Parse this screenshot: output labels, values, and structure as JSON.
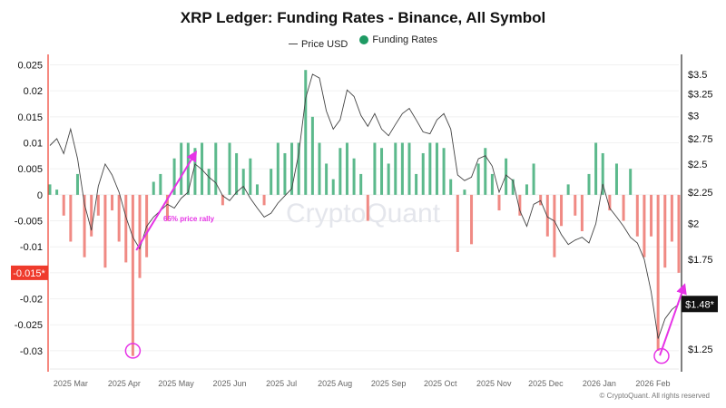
{
  "chart_data": {
    "type": "bar+line",
    "title": "XRP Ledger: Funding Rates - Binance, All Symbol",
    "legend": {
      "placement": "top-center",
      "entries": [
        "Price USD",
        "Funding Rates"
      ]
    },
    "x": [
      "2025-02-17",
      "2025-02-21",
      "2025-02-25",
      "2025-03-01",
      "2025-03-05",
      "2025-03-09",
      "2025-03-13",
      "2025-03-17",
      "2025-03-21",
      "2025-03-25",
      "2025-03-29",
      "2025-04-02",
      "2025-04-06",
      "2025-04-10",
      "2025-04-14",
      "2025-04-18",
      "2025-04-22",
      "2025-04-26",
      "2025-04-30",
      "2025-05-04",
      "2025-05-08",
      "2025-05-12",
      "2025-05-16",
      "2025-05-20",
      "2025-05-24",
      "2025-05-28",
      "2025-06-01",
      "2025-06-05",
      "2025-06-09",
      "2025-06-13",
      "2025-06-17",
      "2025-06-21",
      "2025-06-25",
      "2025-06-29",
      "2025-07-03",
      "2025-07-07",
      "2025-07-11",
      "2025-07-15",
      "2025-07-19",
      "2025-07-23",
      "2025-07-27",
      "2025-07-31",
      "2025-08-04",
      "2025-08-08",
      "2025-08-12",
      "2025-08-16",
      "2025-08-20",
      "2025-08-24",
      "2025-08-28",
      "2025-09-01",
      "2025-09-05",
      "2025-09-09",
      "2025-09-13",
      "2025-09-17",
      "2025-09-21",
      "2025-09-25",
      "2025-09-29",
      "2025-10-03",
      "2025-10-07",
      "2025-10-11",
      "2025-10-15",
      "2025-10-19",
      "2025-10-23",
      "2025-10-27",
      "2025-10-31",
      "2025-11-04",
      "2025-11-08",
      "2025-11-12",
      "2025-11-16",
      "2025-11-20",
      "2025-11-24",
      "2025-11-28",
      "2025-12-02",
      "2025-12-06",
      "2025-12-10",
      "2025-12-14",
      "2025-12-18",
      "2025-12-22",
      "2025-12-26",
      "2025-12-30",
      "2026-01-03",
      "2026-01-07",
      "2026-01-11",
      "2026-01-15",
      "2026-01-19",
      "2026-01-23",
      "2026-01-27",
      "2026-01-31",
      "2026-02-04",
      "2026-02-08",
      "2026-02-12",
      "2026-02-16"
    ],
    "x_ticks": [
      "2025 Mar",
      "2025 Apr",
      "2025 May",
      "2025 Jun",
      "2025 Jul",
      "2025 Aug",
      "2025 Sep",
      "2025 Oct",
      "2025 Nov",
      "2025 Dec",
      "2026 Jan",
      "2026 Feb"
    ],
    "x_tick_dates": [
      "2025-03-01",
      "2025-04-01",
      "2025-05-01",
      "2025-06-01",
      "2025-07-01",
      "2025-08-01",
      "2025-09-01",
      "2025-10-01",
      "2025-11-01",
      "2025-12-01",
      "2026-01-01",
      "2026-02-01"
    ],
    "series": [
      {
        "name": "Funding Rates",
        "axis": "left",
        "type": "bar",
        "color_positive": "#1e9a63",
        "color_negative": "#ef5350",
        "values": [
          0.002,
          0.001,
          -0.004,
          -0.009,
          0.004,
          -0.012,
          -0.008,
          -0.004,
          -0.014,
          -0.003,
          -0.009,
          -0.013,
          -0.031,
          -0.016,
          -0.012,
          0.0025,
          0.004,
          -0.005,
          0.007,
          0.01,
          0.01,
          0.009,
          0.01,
          0.005,
          0.01,
          -0.002,
          0.01,
          0.008,
          0.005,
          0.007,
          0.002,
          -0.002,
          0.005,
          0.01,
          0.008,
          0.01,
          0.01,
          0.024,
          0.015,
          0.01,
          0.006,
          0.003,
          0.009,
          0.01,
          0.007,
          0.004,
          -0.005,
          0.01,
          0.009,
          0.006,
          0.01,
          0.01,
          0.01,
          0.004,
          0.008,
          0.01,
          0.01,
          0.009,
          0.003,
          -0.011,
          0.001,
          -0.0095,
          0.006,
          0.009,
          0.004,
          -0.003,
          0.007,
          0.003,
          -0.004,
          0.002,
          0.006,
          -0.002,
          -0.008,
          -0.012,
          -0.006,
          0.002,
          -0.004,
          -0.007,
          0.004,
          0.01,
          0.008,
          -0.003,
          0.006,
          -0.005,
          0.005,
          -0.008,
          -0.012,
          -0.008,
          -0.03,
          -0.014,
          -0.009,
          -0.015
        ]
      },
      {
        "name": "Price USD",
        "axis": "right",
        "type": "line",
        "color": "#444444",
        "values": [
          2.68,
          2.75,
          2.6,
          2.85,
          2.55,
          2.15,
          1.95,
          2.3,
          2.5,
          2.4,
          2.25,
          2.05,
          1.9,
          1.82,
          1.98,
          2.05,
          2.1,
          2.15,
          2.12,
          2.2,
          2.25,
          2.5,
          2.45,
          2.38,
          2.33,
          2.22,
          2.18,
          2.25,
          2.3,
          2.2,
          2.12,
          2.05,
          2.08,
          2.16,
          2.22,
          2.28,
          2.6,
          3.2,
          3.5,
          3.45,
          3.05,
          2.85,
          2.95,
          3.3,
          3.22,
          3.0,
          2.88,
          3.02,
          2.85,
          2.78,
          2.9,
          3.02,
          3.08,
          2.95,
          2.82,
          2.8,
          2.95,
          3.02,
          2.85,
          2.4,
          2.35,
          2.38,
          2.55,
          2.58,
          2.48,
          2.25,
          2.4,
          2.35,
          2.1,
          1.98,
          2.15,
          2.18,
          2.05,
          2.02,
          1.92,
          1.85,
          1.88,
          1.9,
          1.86,
          2.0,
          2.32,
          2.12,
          2.05,
          1.98,
          1.9,
          1.86,
          1.75,
          1.55,
          1.3,
          1.4,
          1.45,
          1.48
        ]
      }
    ],
    "left_axis": {
      "ylim": [
        -0.0335,
        0.027
      ],
      "ticks": [
        "0.025",
        "0.02",
        "0.015",
        "0.01",
        "0.005",
        "0",
        "-0.005",
        "-0.01",
        "-0.015",
        "-0.02",
        "-0.025",
        "-0.03"
      ],
      "tick_values": [
        0.025,
        0.02,
        0.015,
        0.01,
        0.005,
        0,
        -0.005,
        -0.01,
        -0.015,
        -0.02,
        -0.025,
        -0.03
      ],
      "current_label": "-0.015*",
      "current_value": -0.015,
      "color": "#ef3b2c"
    },
    "right_axis": {
      "scale": "log",
      "ylim": [
        1.16,
        3.77
      ],
      "ticks": [
        "$3.5",
        "$3.25",
        "$3",
        "$2.75",
        "$2.5",
        "$2.25",
        "$2",
        "$1.75",
        "$1.25"
      ],
      "tick_values": [
        3.5,
        3.25,
        3,
        2.75,
        2.5,
        2.25,
        2,
        1.75,
        1.25
      ],
      "current_label": "$1.48*",
      "current_value": 1.48
    },
    "grid": true,
    "annotations": {
      "rally_text": "65% price rally",
      "color": "#e633e6",
      "arrows": [
        {
          "from": [
            "2025-04-08",
            1.81
          ],
          "to": [
            "2025-05-12",
            2.6
          ]
        },
        {
          "from": [
            "2026-02-05",
            1.22
          ],
          "to": [
            "2026-02-19",
            1.58
          ]
        }
      ],
      "circles": [
        {
          "at": [
            "2025-04-06",
            -0.03
          ]
        },
        {
          "at": [
            "2026-02-06",
            -0.031
          ]
        }
      ]
    },
    "watermark": "CryptoQuant",
    "copyright": "© CryptoQuant. All rights reserved"
  }
}
